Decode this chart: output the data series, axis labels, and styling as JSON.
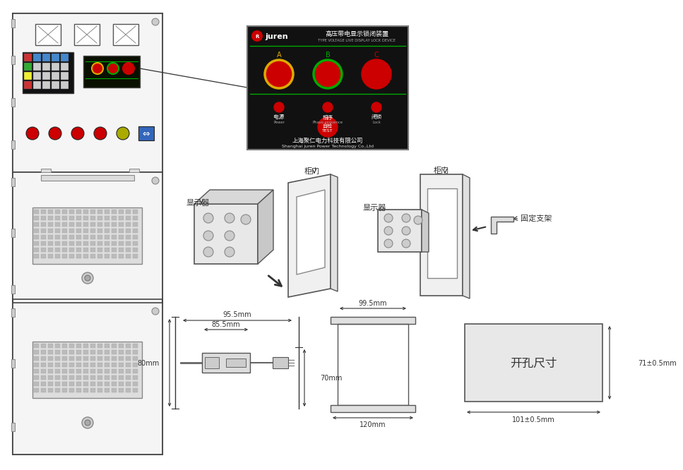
{
  "bg_color": "#ffffff",
  "title_cn": "高压带电显示锁闭装置",
  "title_en": "TYPE VOLTAGE LIVE DISPLAY LOCK DEVICE",
  "company_cn": "上海聚仁电力科技有限公司",
  "company_en": "Shanghai juren Power Technology Co.,Ltd",
  "label_A": "A",
  "label_B": "B",
  "label_C": "C",
  "label_power_cn": "电源",
  "label_power_en": "Power",
  "label_phase_cn": "相序",
  "label_phase_en": "Phase-sequence",
  "label_lock_cn": "闭锁",
  "label_lock_en": "Lock",
  "label_test_cn": "自检",
  "label_test_en": "TEST",
  "dim_99_5": "99.5mm",
  "dim_120": "120mm",
  "dim_80": "80mm",
  "dim_70": "70mm",
  "dim_85_5": "85.5mm",
  "dim_95_5": "95.5mm",
  "dim_101": "101±0.5mm",
  "dim_71": "71±0.5mm",
  "label_kaimen": "开孔尺寸",
  "label_guitmen1": "柜门",
  "label_guitmen2": "柜门",
  "label_xianshiqi1": "显示器",
  "label_xianshiqi2": "显示器",
  "label_gudingzhijia": "固定支架"
}
